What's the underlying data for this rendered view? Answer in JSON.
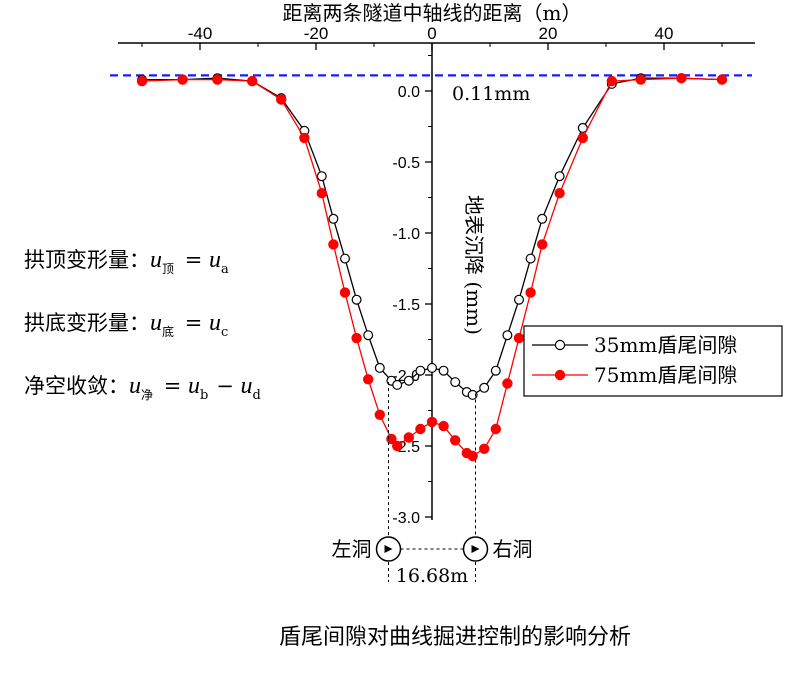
{
  "chart_data": {
    "type": "line",
    "title": "",
    "caption": "盾尾间隙对曲线掘进控制的影响分析",
    "xlabel": "距离两条隧道中轴线的距离（m）",
    "ylabel": "地表沉降 (mm)",
    "xlim": [
      -54,
      55
    ],
    "ylim": [
      -3.0,
      0.15
    ],
    "x_ticks": [
      "-40",
      "-20",
      "0",
      "20",
      "40"
    ],
    "y_ticks": [
      "0.0",
      "-0.5",
      "-1.0",
      "-1.5",
      "-2.0",
      "-2.5",
      "-3.0"
    ],
    "grid": false,
    "legend_position": "right",
    "reference_line": {
      "y": 0.11,
      "label": "0.11mm",
      "color": "#1a1aff"
    },
    "series": [
      {
        "name": "35mm盾尾间隙",
        "color": "#000000",
        "marker": "open-circle",
        "x": [
          -50,
          -43,
          -37,
          -31,
          -26,
          -22,
          -19,
          -17,
          -15,
          -13,
          -11,
          -9,
          -7,
          -6,
          -4,
          -2,
          0,
          2,
          4,
          6,
          7,
          9,
          11,
          13,
          15,
          17,
          19,
          22,
          26,
          31,
          36,
          43,
          50
        ],
        "y": [
          0.08,
          0.08,
          0.09,
          0.07,
          -0.05,
          -0.28,
          -0.6,
          -0.9,
          -1.18,
          -1.47,
          -1.72,
          -1.95,
          -2.04,
          -2.07,
          -2.04,
          -1.97,
          -1.95,
          -1.97,
          -2.05,
          -2.12,
          -2.14,
          -2.09,
          -1.97,
          -1.72,
          -1.47,
          -1.18,
          -0.9,
          -0.6,
          -0.26,
          0.05,
          0.09,
          0.09,
          0.08
        ]
      },
      {
        "name": "75mm盾尾间隙",
        "color": "#ff0000",
        "marker": "filled-circle",
        "x": [
          -50,
          -43,
          -37,
          -31,
          -26,
          -22,
          -19,
          -17,
          -15,
          -13,
          -11,
          -9,
          -7,
          -6,
          -4,
          -2,
          0,
          2,
          4,
          6,
          7,
          9,
          11,
          13,
          15,
          17,
          19,
          22,
          26,
          31,
          36,
          43,
          50
        ],
        "y": [
          0.07,
          0.08,
          0.08,
          0.07,
          -0.06,
          -0.33,
          -0.72,
          -1.08,
          -1.42,
          -1.74,
          -2.03,
          -2.28,
          -2.45,
          -2.5,
          -2.44,
          -2.38,
          -2.33,
          -2.36,
          -2.46,
          -2.55,
          -2.57,
          -2.52,
          -2.38,
          -2.06,
          -1.74,
          -1.42,
          -1.08,
          -0.72,
          -0.33,
          0.07,
          0.08,
          0.09,
          0.08
        ]
      }
    ],
    "annotations": [
      {
        "kind": "formula",
        "prefix": "拱顶变形量：",
        "u": "u",
        "lhs_sub": "顶",
        "op1": "=",
        "rhs": [
          {
            "u": "u",
            "sub": "a"
          }
        ]
      },
      {
        "kind": "formula",
        "prefix": "拱底变形量：",
        "u": "u",
        "lhs_sub": "底",
        "op1": "=",
        "rhs": [
          {
            "u": "u",
            "sub": "c"
          }
        ]
      },
      {
        "kind": "formula",
        "prefix": "净空收敛：",
        "u": "u",
        "lhs_sub": "净",
        "op1": "=",
        "rhs": [
          {
            "u": "u",
            "sub": "b"
          },
          {
            "op": "−"
          },
          {
            "u": "u",
            "sub": "d"
          }
        ]
      }
    ],
    "tunnels": {
      "left_label": "左洞",
      "right_label": "右洞",
      "spacing_label": "16.68m",
      "left_x": -7.5,
      "right_x": 7.5
    }
  }
}
